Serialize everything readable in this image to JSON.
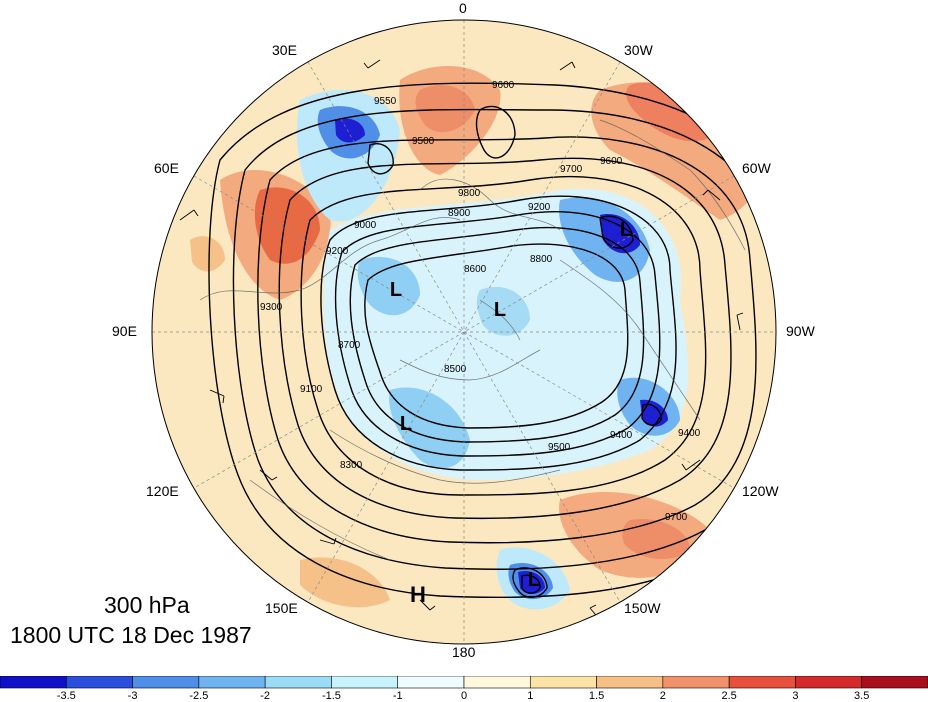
{
  "map": {
    "projection": "north-polar-stereographic",
    "level_label": "300 hPa",
    "time_label": "1800 UTC 18 Dec 1987",
    "longitude_labels": [
      "0",
      "30W",
      "60W",
      "90W",
      "120W",
      "150W",
      "180",
      "150E",
      "120E",
      "90E",
      "60E",
      "30E"
    ],
    "contour_labels": [
      "9600",
      "9550",
      "9500",
      "9200",
      "9000",
      "8900",
      "8600",
      "8800",
      "8700",
      "8500",
      "9300",
      "9100",
      "9400",
      "9700",
      "8300",
      "9800",
      "9700",
      "9600",
      "9500",
      "9400",
      "9200"
    ],
    "high_markers": [
      "H"
    ],
    "low_markers": [
      "L",
      "L",
      "L",
      "L",
      "L"
    ],
    "colors": {
      "neg_strong": "#1e1ed2",
      "neg_mid": "#4f8fe8",
      "neg_light": "#b7ecfb",
      "pos_light": "#fbe8b8",
      "pos_mid": "#f5a776",
      "pos_strong": "#e8503c"
    }
  },
  "colorbar": {
    "tick_labels": [
      "-3.5",
      "-3",
      "-2.5",
      "-2",
      "-1.5",
      "-1",
      "0",
      "1",
      "1.5",
      "2",
      "2.5",
      "3",
      "3.5"
    ],
    "colors": [
      "#1010c8",
      "#2a4fdc",
      "#4f8fe8",
      "#6fb4f0",
      "#9adcf6",
      "#c8f2fc",
      "#eefcfe",
      "#fff8dc",
      "#fbe3a8",
      "#f5bf85",
      "#f0916a",
      "#e8503c",
      "#d42a2c",
      "#a80e1c"
    ]
  }
}
